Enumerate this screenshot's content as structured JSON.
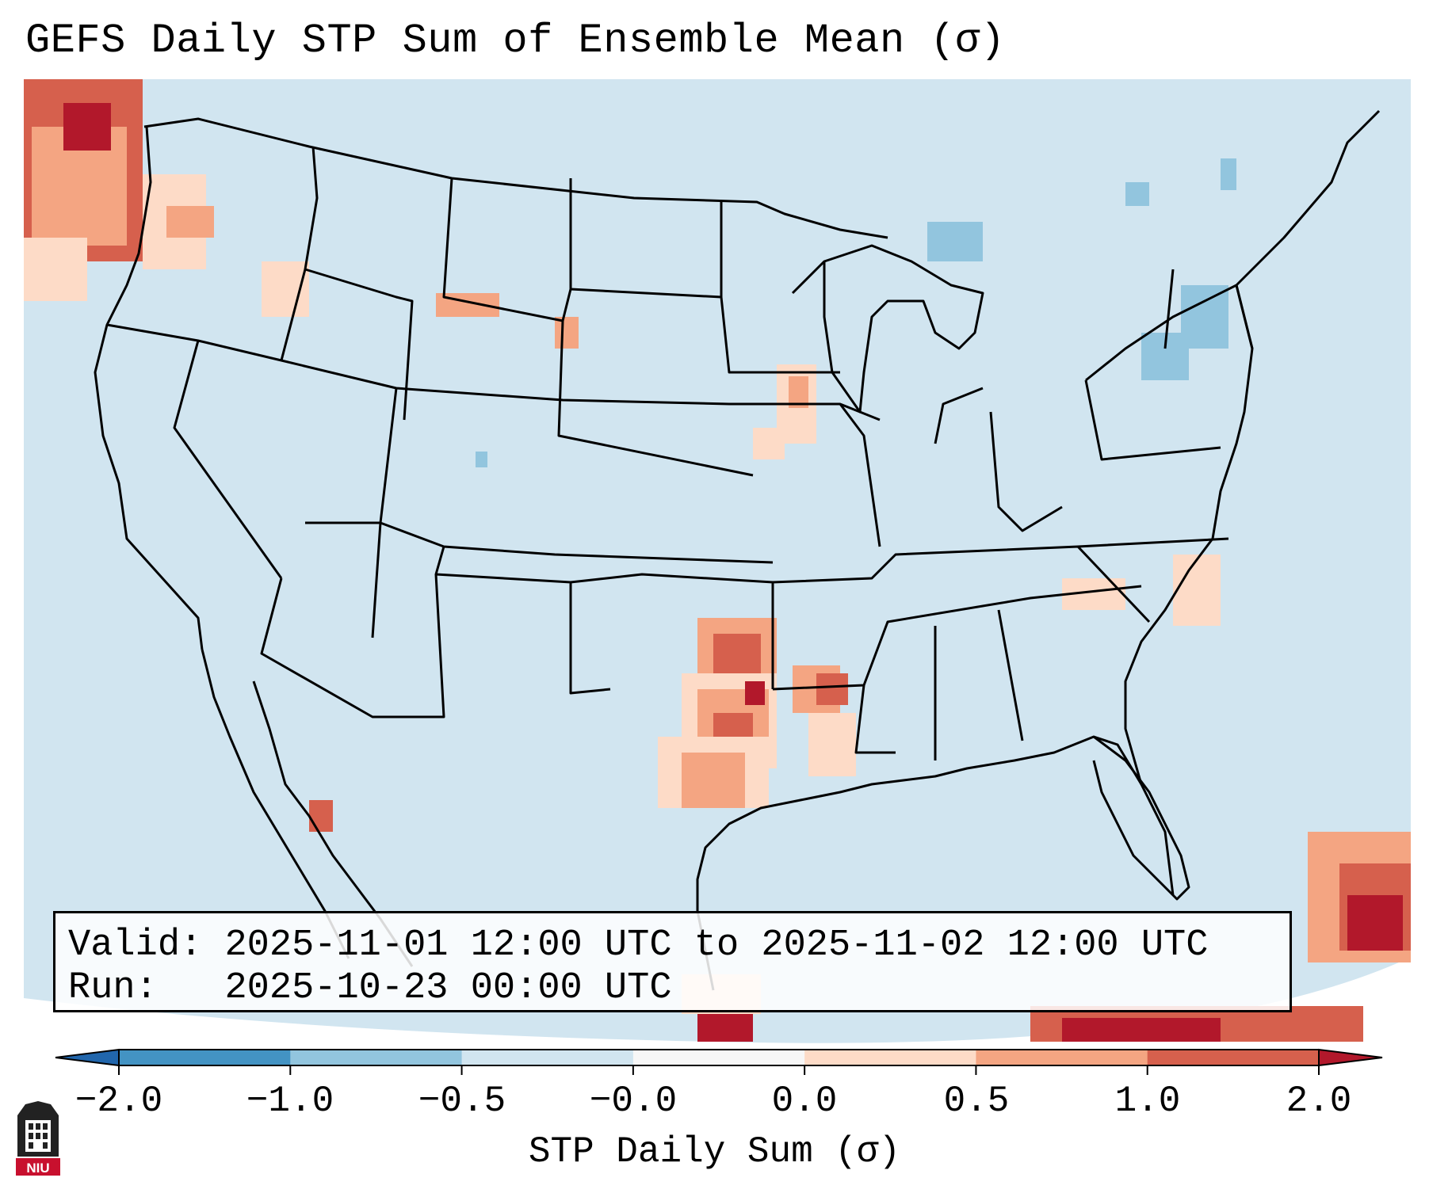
{
  "title": "GEFS Daily STP Sum of Ensemble Mean (σ)",
  "info": {
    "valid_label": "Valid:",
    "valid_value": "2025-11-01 12:00 UTC to 2025-11-02 12:00 UTC",
    "run_label": "Run:",
    "run_value": "2025-10-23 00:00 UTC"
  },
  "colorbar": {
    "label": "STP Daily Sum (σ)",
    "ticks": [
      "−2.0",
      "−1.0",
      "−0.5",
      "−0.0",
      "0.0",
      "0.5",
      "1.0",
      "2.0"
    ],
    "colors": [
      "#4393c3",
      "#92c5de",
      "#d1e5f0",
      "#f7f7f7",
      "#fddbc7",
      "#f4a582",
      "#d6604d"
    ],
    "under_color": "#2166ac",
    "over_color": "#b2182b"
  },
  "map": {
    "background_color": "#d1e5f0",
    "outside_color": "#ffffff",
    "line_color": "#000000"
  },
  "logo": {
    "text": "NIU",
    "color": "#c8102e"
  }
}
